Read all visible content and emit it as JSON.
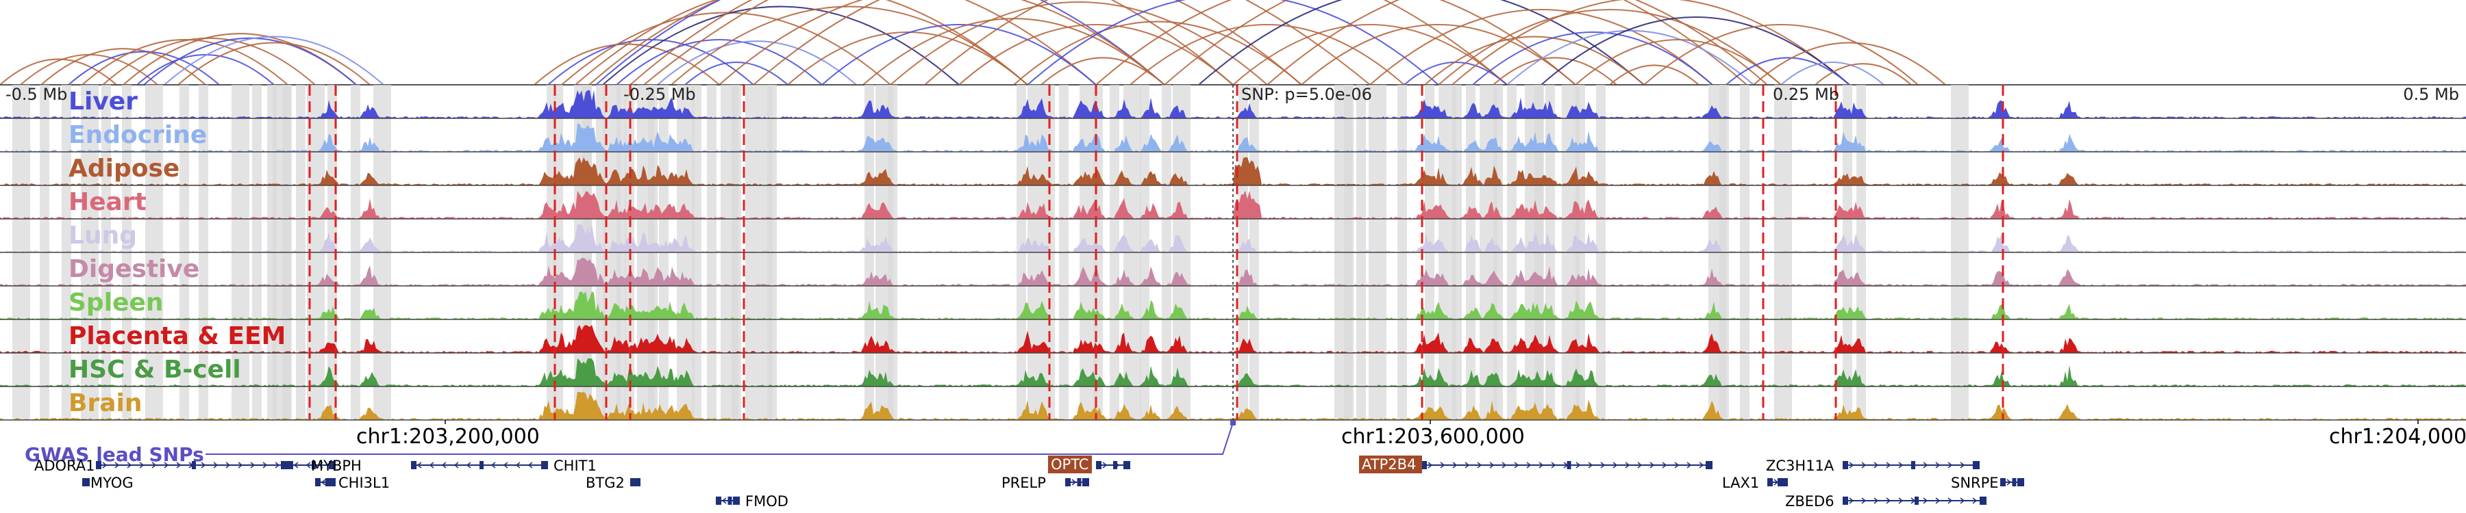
{
  "arcs_panel": {
    "colors": {
      "brown": "#b5673f",
      "blue": "#4a4fd8",
      "navy": "#2a2a7a",
      "light_blue": "#7f8fe8"
    }
  },
  "position_labels": [
    {
      "id": "minus-0-5",
      "text": "-0.5 Mb"
    },
    {
      "id": "minus-0-25",
      "text": "-0.25 Mb"
    },
    {
      "id": "snp",
      "text": "SNP: p=5.0e-06"
    },
    {
      "id": "plus-0-25",
      "text": "0.25 Mb"
    },
    {
      "id": "plus-0-5",
      "text": "0.5 Mb"
    }
  ],
  "tracks": [
    {
      "id": "liver",
      "label": "Liver",
      "color": "#4b4fd8"
    },
    {
      "id": "endocrine",
      "label": "Endocrine",
      "color": "#8fb3ee"
    },
    {
      "id": "adipose",
      "label": "Adipose",
      "color": "#b05a32"
    },
    {
      "id": "heart",
      "label": "Heart",
      "color": "#d9697a"
    },
    {
      "id": "lung",
      "label": "Lung",
      "color": "#cfc8e6"
    },
    {
      "id": "digestive",
      "label": "Digestive",
      "color": "#c58aa8"
    },
    {
      "id": "spleen",
      "label": "Spleen",
      "color": "#78c855"
    },
    {
      "id": "placenta",
      "label": "Placenta & EEM",
      "color": "#d11a1a"
    },
    {
      "id": "hsc",
      "label": "HSC & B-cell",
      "color": "#4a9c46"
    },
    {
      "id": "brain",
      "label": "Brain",
      "color": "#d09a2c"
    }
  ],
  "axis": {
    "tick_labels": [
      "chr1:203,200,000",
      "chr1:203,600,000",
      "chr1:204,000,000"
    ]
  },
  "gwas": {
    "title": "GWAS lead SNPs",
    "color": "#5b4fc4"
  },
  "genes": [
    {
      "name": "ADORA1",
      "highlight": false
    },
    {
      "name": "MYBPH",
      "highlight": false
    },
    {
      "name": "MYOG",
      "highlight": false
    },
    {
      "name": "CHI3L1",
      "highlight": false
    },
    {
      "name": "CHIT1",
      "highlight": false
    },
    {
      "name": "BTG2",
      "highlight": false
    },
    {
      "name": "FMOD",
      "highlight": false
    },
    {
      "name": "OPTC",
      "highlight": true
    },
    {
      "name": "PRELP",
      "highlight": false
    },
    {
      "name": "ATP2B4",
      "highlight": true
    },
    {
      "name": "ZC3H11A",
      "highlight": false
    },
    {
      "name": "LAX1",
      "highlight": false
    },
    {
      "name": "SNRPE",
      "highlight": false
    },
    {
      "name": "ZBED6",
      "highlight": false
    }
  ],
  "colors": {
    "highlight_gene": "#a24a28",
    "gene_blue": "#1f2f7a",
    "marker_red": "#e02020",
    "band_grey": "#d9d9d9"
  }
}
